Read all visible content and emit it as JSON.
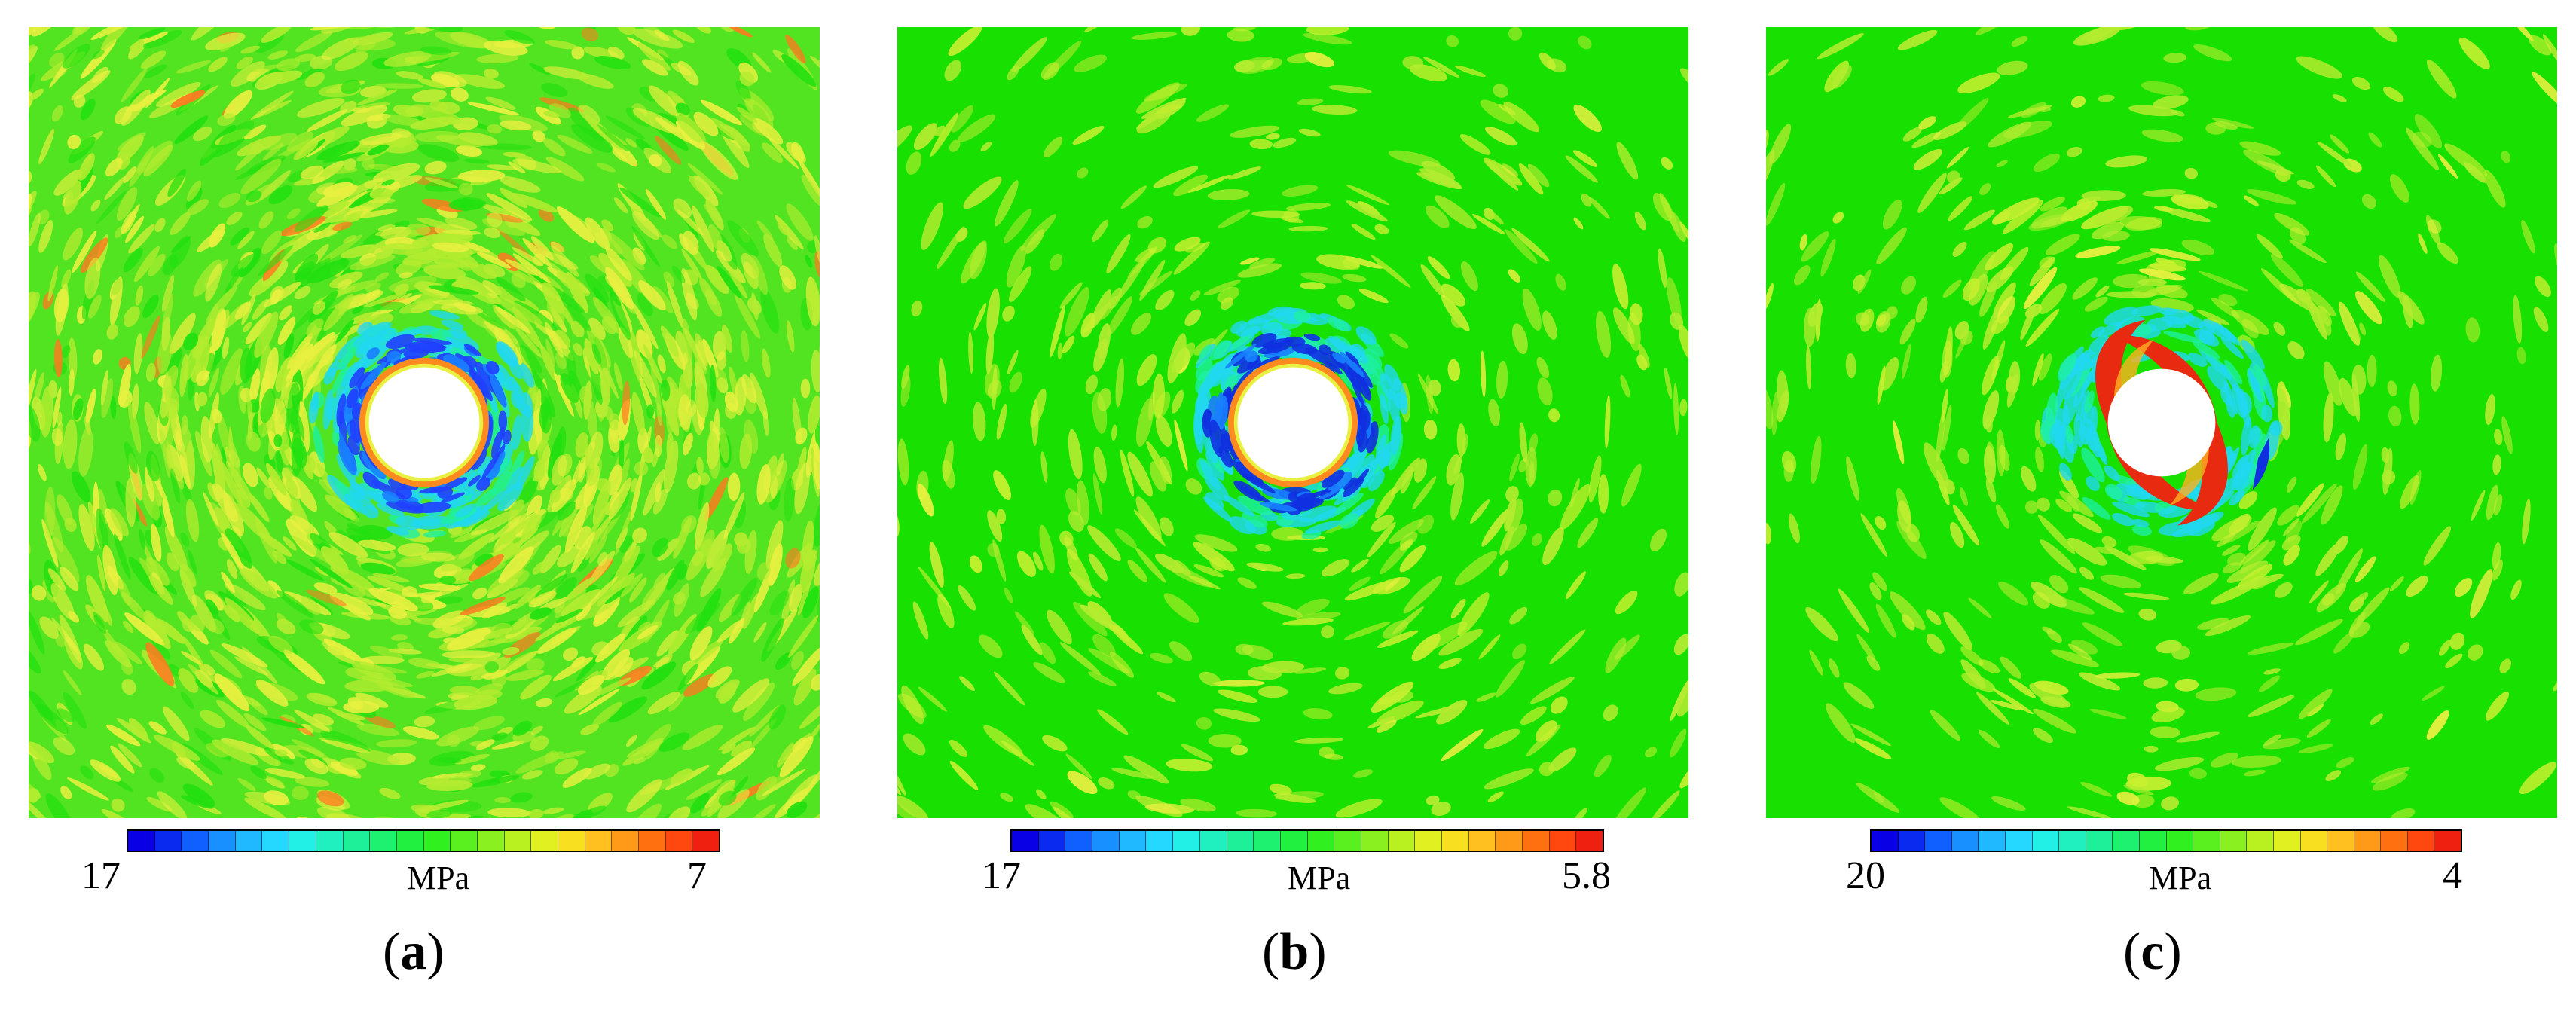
{
  "panels": [
    {
      "id": "a",
      "caption_open": "(",
      "caption_letter": "a",
      "caption_close": ")",
      "colorbar_left_label": "17",
      "colorbar_unit": "MPa",
      "colorbar_right_label": "7",
      "field_pattern": "uniform-mottled-yellow-green-with-blue-ring",
      "ring_highlight_color": "#2040ff"
    },
    {
      "id": "b",
      "caption_open": "(",
      "caption_letter": "b",
      "caption_close": ")",
      "colorbar_left_label": "17",
      "colorbar_unit": "MPa",
      "colorbar_right_label": "5.8",
      "field_pattern": "green-with-blue-ring",
      "ring_highlight_color": "#1030e0"
    },
    {
      "id": "c",
      "caption_open": "(",
      "caption_letter": "c",
      "caption_close": ")",
      "colorbar_left_label": "20",
      "colorbar_unit": "MPa",
      "colorbar_right_label": "4",
      "field_pattern": "green-with-red-spiral-around-hole",
      "ring_highlight_color": "#e82a10"
    }
  ],
  "colorbar_colors": [
    "#0a00e6",
    "#0b2af0",
    "#1060ff",
    "#1890ff",
    "#20b8ff",
    "#25d8ff",
    "#22f0e6",
    "#20f0c0",
    "#1ef09a",
    "#1ef070",
    "#22f040",
    "#30f020",
    "#5af020",
    "#8af020",
    "#b8f020",
    "#e0f020",
    "#f8e020",
    "#ffc020",
    "#ff9a18",
    "#ff7010",
    "#ff4810",
    "#f02010"
  ],
  "field_colors": {
    "background_green": "#18e000",
    "yellow_green": "#b4ec30",
    "yellow": "#e8f040",
    "light_blue": "#20d8f0",
    "hole": "#ffffff"
  }
}
